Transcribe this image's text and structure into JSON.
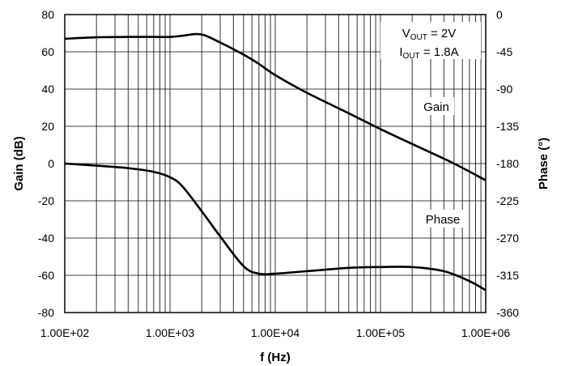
{
  "chart_data": {
    "type": "line",
    "xlabel": "f (Hz)",
    "ylabel": "Gain (dB)",
    "y2label": "Phase (°)",
    "xscale": "log",
    "xlim": [
      100,
      1000000
    ],
    "ylim": [
      -80,
      80
    ],
    "y2lim": [
      -360,
      0
    ],
    "grid": true,
    "x_ticks": [
      100,
      1000,
      10000,
      100000,
      1000000
    ],
    "x_tick_labels": [
      "1.00E+02",
      "1.00E+03",
      "1.00E+04",
      "1.00E+05",
      "1.00E+06"
    ],
    "y_ticks": [
      80,
      60,
      40,
      20,
      0,
      -20,
      -40,
      -60,
      -80
    ],
    "y_tick_labels": [
      "80",
      "60",
      "40",
      "20",
      "0",
      "-20",
      "-40",
      "-60",
      "-80"
    ],
    "y2_ticks": [
      0,
      -45,
      -90,
      -135,
      -180,
      -225,
      -270,
      -315,
      -360
    ],
    "y2_tick_labels": [
      "0",
      "-45",
      "-90",
      "-135",
      "-180",
      "-225",
      "-270",
      "-315",
      "-360"
    ],
    "conditions": {
      "vout": {
        "prefix": "V",
        "sub": "OUT",
        "suffix": " = 2V"
      },
      "iout": {
        "prefix": "I",
        "sub": "OUT",
        "suffix": " = 1.8A"
      }
    },
    "series": [
      {
        "name": "Gain",
        "axis": "left",
        "x": [
          100,
          200,
          400,
          700,
          1000,
          1300,
          1700,
          2100,
          3000,
          5000,
          7000,
          10000,
          20000,
          50000,
          100000,
          200000,
          500000,
          1000000
        ],
        "y": [
          67,
          67.8,
          68,
          68,
          68,
          68.6,
          69.5,
          69,
          65,
          58.5,
          53.5,
          47.5,
          38,
          27,
          18.5,
          10.5,
          0,
          -9
        ]
      },
      {
        "name": "Phase",
        "axis": "right",
        "x": [
          100,
          200,
          400,
          700,
          1000,
          1300,
          2000,
          3000,
          5000,
          7000,
          10000,
          20000,
          50000,
          100000,
          200000,
          400000,
          700000,
          1000000
        ],
        "y": [
          -180,
          -182.5,
          -185.5,
          -190,
          -196.5,
          -207,
          -237.5,
          -268,
          -304,
          -313,
          -313,
          -310,
          -306,
          -305,
          -305,
          -310,
          -322,
          -333
        ]
      }
    ],
    "series_label_colors": {
      "line": "#000000",
      "grid": "#000000"
    }
  }
}
